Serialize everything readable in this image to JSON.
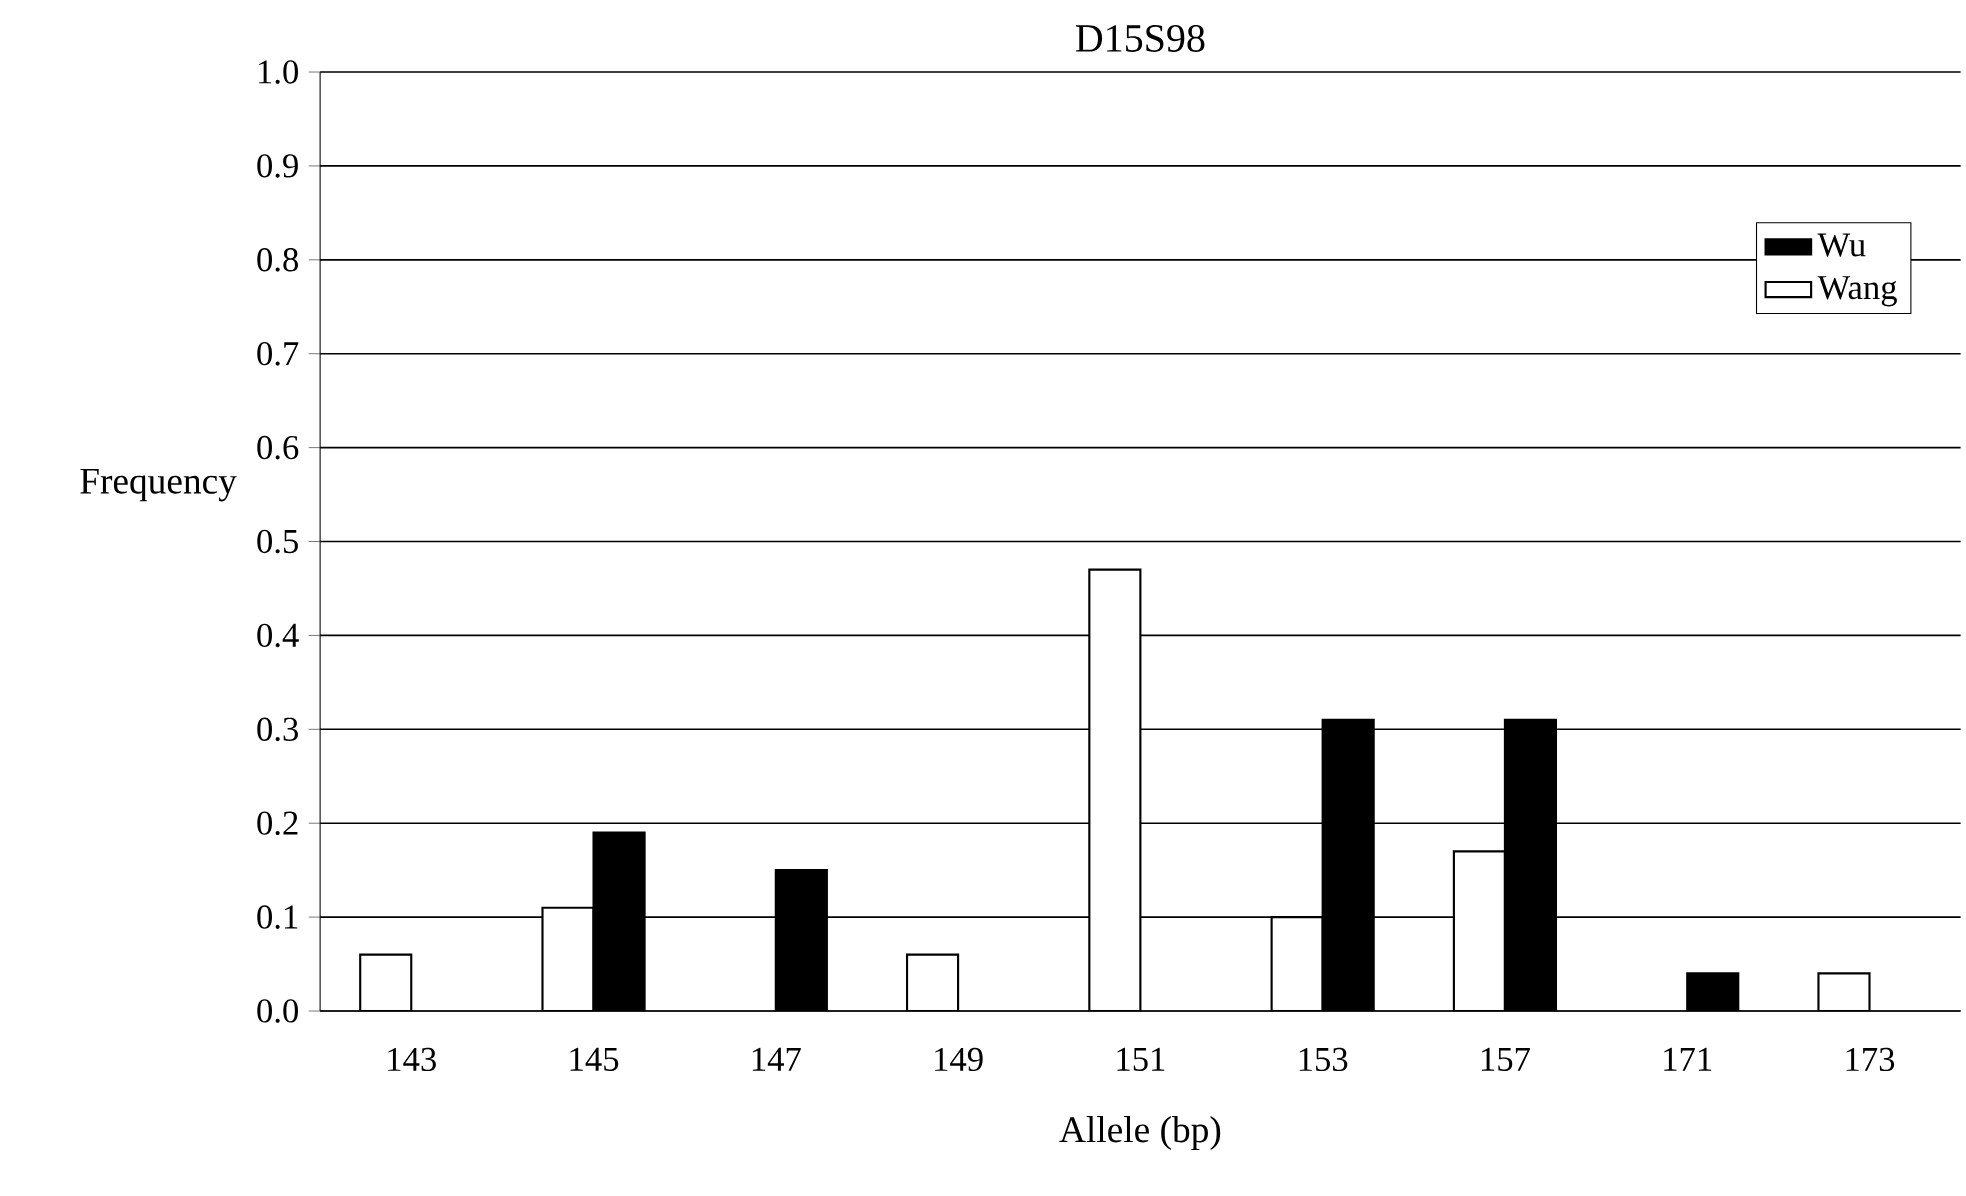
{
  "chart_data": {
    "type": "bar",
    "title": "D15S98",
    "xlabel": "Allele (bp)",
    "ylabel": "Frequency",
    "categories": [
      "143",
      "145",
      "147",
      "149",
      "151",
      "153",
      "157",
      "171",
      "173"
    ],
    "series": [
      {
        "name": "Wang",
        "color": "#ffffff",
        "values": [
          0.06,
          0.11,
          null,
          0.06,
          0.47,
          0.1,
          0.17,
          null,
          0.04
        ]
      },
      {
        "name": "Wu",
        "color": "#000000",
        "values": [
          null,
          0.19,
          0.15,
          null,
          null,
          0.31,
          0.31,
          0.04,
          null
        ]
      }
    ],
    "ylim": [
      0,
      1.0
    ],
    "yticks": [
      {
        "value": 0,
        "label": "0.0"
      },
      {
        "value": 0.1,
        "label": "0.1"
      },
      {
        "value": 0.2,
        "label": "0.2"
      },
      {
        "value": 0.3,
        "label": "0.3"
      },
      {
        "value": 0.4,
        "label": "0.4"
      },
      {
        "value": 0.5,
        "label": "0.5"
      },
      {
        "value": 0.6,
        "label": "0.6"
      },
      {
        "value": 0.7,
        "label": "0.7"
      },
      {
        "value": 0.8,
        "label": "0.8"
      },
      {
        "value": 0.9,
        "label": "0.9"
      },
      {
        "value": 1.0,
        "label": "1.0"
      }
    ],
    "grid": "y",
    "legend": "top right"
  }
}
